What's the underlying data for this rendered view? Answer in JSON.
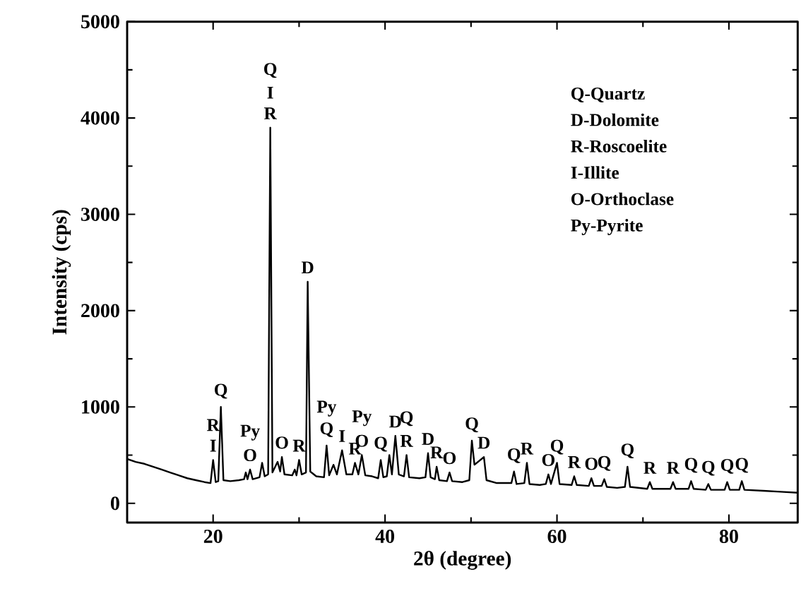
{
  "chart_data": {
    "type": "line",
    "xlabel": "2θ (degree)",
    "ylabel": "Intensity (cps)",
    "xlim": [
      10,
      88
    ],
    "ylim": [
      -200,
      5000
    ],
    "xticks": [
      20,
      40,
      60,
      80
    ],
    "yticks": [
      0,
      1000,
      2000,
      3000,
      4000,
      5000
    ],
    "color": "#000000",
    "grid": false,
    "marker": "none",
    "line_style": "solid",
    "x": [
      10,
      11,
      12,
      13,
      14,
      15,
      16,
      17,
      18,
      19,
      19.7,
      20.0,
      20.3,
      20.6,
      20.9,
      21.2,
      22,
      23,
      23.6,
      23.8,
      24.0,
      24.3,
      24.6,
      25.4,
      25.7,
      26.0,
      26.4,
      26.65,
      26.9,
      27.5,
      27.8,
      28.0,
      28.3,
      29.2,
      29.5,
      29.7,
      30.0,
      30.3,
      30.8,
      31.0,
      31.3,
      32,
      32.9,
      33.2,
      33.5,
      34.0,
      34.4,
      35.0,
      35.5,
      36.2,
      36.5,
      36.9,
      37.3,
      37.7,
      38.5,
      39.2,
      39.5,
      39.8,
      40.2,
      40.5,
      40.8,
      41.2,
      41.6,
      42.2,
      42.5,
      42.8,
      44,
      44.7,
      45.0,
      45.3,
      45.8,
      46.0,
      46.3,
      47.2,
      47.5,
      47.8,
      49,
      49.8,
      50.1,
      50.4,
      51.5,
      51.8,
      53,
      54.7,
      55.0,
      55.3,
      56.2,
      56.5,
      56.8,
      58,
      58.7,
      59.0,
      59.3,
      60.0,
      60.3,
      61.7,
      62.0,
      62.3,
      63.7,
      64.0,
      64.3,
      65.2,
      65.5,
      65.8,
      67,
      67.9,
      68.2,
      68.5,
      70.5,
      70.8,
      71.1,
      73.2,
      73.5,
      73.8,
      75.3,
      75.6,
      75.9,
      77.3,
      77.6,
      77.9,
      79.5,
      79.8,
      80.1,
      81.2,
      81.5,
      81.8,
      84,
      86,
      88
    ],
    "values": [
      460,
      430,
      410,
      380,
      350,
      320,
      290,
      260,
      240,
      220,
      210,
      450,
      220,
      230,
      1000,
      240,
      230,
      240,
      250,
      320,
      250,
      350,
      250,
      270,
      420,
      280,
      300,
      3900,
      320,
      430,
      330,
      480,
      300,
      290,
      350,
      290,
      450,
      300,
      320,
      2300,
      330,
      280,
      270,
      600,
      290,
      400,
      300,
      550,
      300,
      300,
      420,
      300,
      500,
      290,
      280,
      260,
      450,
      270,
      280,
      500,
      300,
      700,
      300,
      280,
      500,
      270,
      260,
      270,
      520,
      270,
      250,
      380,
      240,
      230,
      320,
      230,
      220,
      240,
      650,
      400,
      480,
      240,
      210,
      210,
      330,
      200,
      210,
      420,
      200,
      190,
      200,
      300,
      200,
      420,
      200,
      190,
      280,
      190,
      180,
      260,
      180,
      180,
      250,
      170,
      160,
      170,
      380,
      170,
      150,
      220,
      150,
      150,
      220,
      150,
      150,
      230,
      150,
      140,
      200,
      140,
      140,
      220,
      140,
      140,
      230,
      140,
      130,
      120,
      110
    ],
    "annotations": [
      "Q-Quartz",
      "D-Dolomite",
      "R-Roscoelite",
      "I-Illite",
      "O-Orthoclase",
      "Py-Pyrite",
      {
        "text": "I",
        "x": 20.0,
        "y": 450
      },
      {
        "text": "R",
        "x": 20.0,
        "y": 450
      },
      {
        "text": "Q",
        "x": 20.9,
        "y": 1000
      },
      {
        "text": "O",
        "x": 24.3,
        "y": 350
      },
      {
        "text": "Py",
        "x": 24.3,
        "y": 350
      },
      {
        "text": "R",
        "x": 26.65,
        "y": 3900
      },
      {
        "text": "I",
        "x": 26.65,
        "y": 3900
      },
      {
        "text": "Q",
        "x": 26.65,
        "y": 3900
      },
      {
        "text": "O",
        "x": 28.0,
        "y": 480
      },
      {
        "text": "R",
        "x": 30.0,
        "y": 450
      },
      {
        "text": "D",
        "x": 31.0,
        "y": 2300
      },
      {
        "text": "Q",
        "x": 33.2,
        "y": 600
      },
      {
        "text": "Py",
        "x": 33.2,
        "y": 600
      },
      {
        "text": "I",
        "x": 35.0,
        "y": 550
      },
      {
        "text": "R",
        "x": 36.5,
        "y": 420
      },
      {
        "text": "O",
        "x": 37.3,
        "y": 500
      },
      {
        "text": "Py",
        "x": 37.3,
        "y": 500
      },
      {
        "text": "Q",
        "x": 39.5,
        "y": 450
      },
      {
        "text": "D",
        "x": 41.2,
        "y": 700
      },
      {
        "text": "R",
        "x": 42.5,
        "y": 500
      },
      {
        "text": "Q",
        "x": 42.5,
        "y": 500
      },
      {
        "text": "D",
        "x": 45.0,
        "y": 520
      },
      {
        "text": "R",
        "x": 46.0,
        "y": 380
      },
      {
        "text": "O",
        "x": 47.5,
        "y": 320
      },
      {
        "text": "Q",
        "x": 50.1,
        "y": 650
      },
      {
        "text": "D",
        "x": 51.5,
        "y": 480
      },
      {
        "text": "Q",
        "x": 55.0,
        "y": 330
      },
      {
        "text": "R",
        "x": 56.5,
        "y": 420
      },
      {
        "text": "O",
        "x": 59.0,
        "y": 300
      },
      {
        "text": "Q",
        "x": 60.0,
        "y": 420
      },
      {
        "text": "R",
        "x": 62.0,
        "y": 280
      },
      {
        "text": "O",
        "x": 64.0,
        "y": 260
      },
      {
        "text": "Q",
        "x": 65.5,
        "y": 250
      },
      {
        "text": "Q",
        "x": 68.2,
        "y": 380
      },
      {
        "text": "R",
        "x": 70.8,
        "y": 220
      },
      {
        "text": "R",
        "x": 73.5,
        "y": 220
      },
      {
        "text": "Q",
        "x": 75.6,
        "y": 230
      },
      {
        "text": "Q",
        "x": 77.6,
        "y": 200
      },
      {
        "text": "Q",
        "x": 79.8,
        "y": 220
      },
      {
        "text": "Q",
        "x": 81.5,
        "y": 230
      }
    ]
  }
}
